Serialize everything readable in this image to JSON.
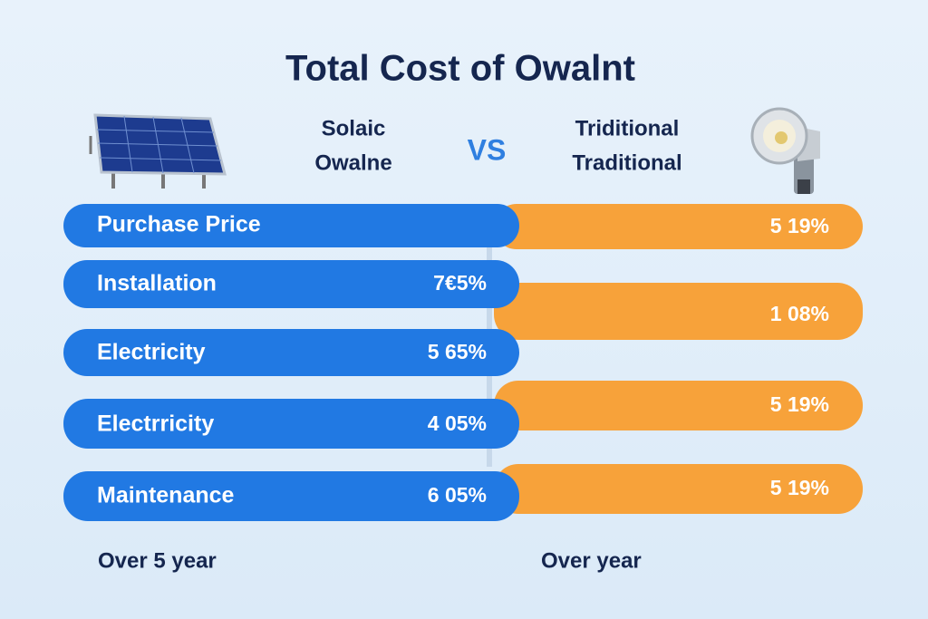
{
  "header": {
    "title": "Total Cost of Owalnt",
    "left_label": [
      "Solaic",
      "Owalne"
    ],
    "vs": "VS",
    "right_label": [
      "Triditional",
      "Traditional"
    ]
  },
  "left_bars": [
    {
      "label": "Purchase Price"
    },
    {
      "label": "Installation",
      "value": "7€5%"
    },
    {
      "label": "Electricity",
      "value": "5 65%"
    },
    {
      "label": "Electrricity",
      "value": "4 05%"
    },
    {
      "label": "Maintenance",
      "value": "6 05%"
    }
  ],
  "right_bars": [
    {
      "value": "5 19%"
    },
    {
      "value": "1 08%"
    },
    {
      "value": "5 19%"
    },
    {
      "value": "5 19%"
    }
  ],
  "footer": {
    "left": "Over 5 year",
    "right": "Over year"
  }
}
